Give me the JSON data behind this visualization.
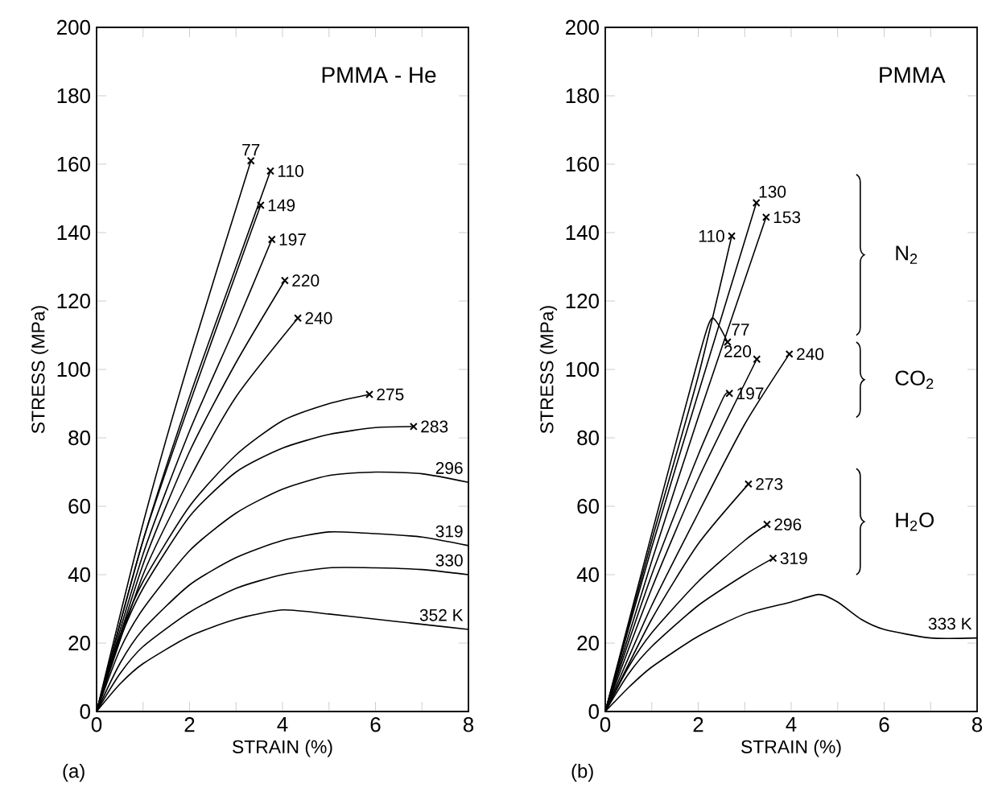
{
  "chart_data": [
    {
      "type": "line",
      "title": "PMMA - He",
      "xlabel": "STRAIN (%)",
      "ylabel": "STRESS (MPa)",
      "xlim": [
        0,
        8
      ],
      "ylim": [
        0,
        200
      ],
      "xticks": [
        0,
        {
          "value": 1,
          "label": null
        },
        2,
        {
          "value": 3,
          "label": null
        },
        4,
        {
          "value": 5,
          "label": null
        },
        6,
        {
          "value": 7,
          "label": null
        },
        8
      ],
      "yticks": [
        0,
        20,
        40,
        60,
        80,
        100,
        120,
        140,
        160,
        180,
        200
      ],
      "annotations": [
        "(a)"
      ],
      "series": [
        {
          "name": "77",
          "color": "#000000",
          "x": [
            0,
            1,
            2,
            3.32
          ],
          "values": [
            0,
            55,
            103,
            161
          ]
        },
        {
          "name": "110",
          "color": "#000000",
          "x": [
            0,
            1,
            2,
            3,
            3.74
          ],
          "values": [
            0,
            50,
            92,
            130,
            158
          ]
        },
        {
          "name": "149",
          "color": "#000000",
          "x": [
            0,
            1,
            2,
            3,
            3.53
          ],
          "values": [
            0,
            50,
            90,
            128,
            148
          ]
        },
        {
          "name": "197",
          "color": "#000000",
          "x": [
            0,
            1,
            2,
            3,
            3.77
          ],
          "values": [
            0,
            46,
            82,
            113,
            138
          ]
        },
        {
          "name": "220",
          "color": "#000000",
          "x": [
            0,
            1,
            2,
            3,
            4.05
          ],
          "values": [
            0,
            43,
            76,
            102,
            126
          ]
        },
        {
          "name": "240",
          "color": "#000000",
          "x": [
            0,
            1,
            2,
            3,
            4.33
          ],
          "values": [
            0,
            40,
            68,
            92,
            115
          ]
        },
        {
          "name": "275",
          "color": "#000000",
          "x": [
            0,
            0.5,
            1,
            2,
            3,
            4,
            5,
            5.87
          ],
          "values": [
            0,
            22,
            38,
            60,
            75,
            85,
            90,
            92.7
          ]
        },
        {
          "name": "283",
          "color": "#000000",
          "x": [
            0,
            0.5,
            1,
            2,
            3,
            4,
            5,
            6,
            6.82
          ],
          "values": [
            0,
            21,
            36,
            57,
            70,
            77,
            81,
            83,
            83.3
          ]
        },
        {
          "name": "296",
          "color": "#000000",
          "x": [
            0,
            0.5,
            1,
            2,
            3,
            4,
            5,
            6,
            7,
            8
          ],
          "values": [
            0,
            18,
            30,
            47,
            58,
            65,
            69,
            70,
            69.5,
            67
          ]
        },
        {
          "name": "319",
          "color": "#000000",
          "x": [
            0,
            0.5,
            1,
            2,
            3,
            4,
            5,
            6,
            7,
            8
          ],
          "values": [
            0,
            14,
            24,
            37,
            45,
            50,
            52.5,
            52,
            51,
            48.5
          ]
        },
        {
          "name": "330",
          "color": "#000000",
          "x": [
            0,
            0.5,
            1,
            2,
            3,
            4,
            5,
            6,
            7,
            8
          ],
          "values": [
            0,
            11,
            19,
            29,
            36,
            40,
            42,
            42,
            41.5,
            40
          ]
        },
        {
          "name": "352 K",
          "color": "#000000",
          "x": [
            0,
            0.5,
            1,
            2,
            3,
            4,
            5,
            6,
            7,
            8
          ],
          "values": [
            0,
            8,
            14,
            22,
            27,
            29.7,
            28.5,
            27,
            25.5,
            24
          ]
        },
        {
          "type": "scatter",
          "color": "#000000",
          "marker": "cross",
          "x": [
            3.32,
            3.74,
            3.53,
            3.77,
            4.05,
            4.33,
            5.87,
            6.82
          ],
          "values": [
            161,
            158,
            148,
            138,
            126,
            115,
            92.7,
            83.3
          ]
        }
      ]
    },
    {
      "type": "line",
      "title": "PMMA",
      "xlabel": "STRAIN (%)",
      "ylabel": "STRESS (MPa)",
      "xlim": [
        0,
        8
      ],
      "ylim": [
        0,
        200
      ],
      "xticks": [
        0,
        {
          "value": 1,
          "label": null
        },
        2,
        {
          "value": 3,
          "label": null
        },
        4,
        {
          "value": 5,
          "label": null
        },
        6,
        {
          "value": 7,
          "label": null
        },
        8
      ],
      "yticks": [
        0,
        20,
        40,
        60,
        80,
        100,
        120,
        140,
        160,
        180,
        200
      ],
      "annotations": [
        "(b)",
        "N$_{2}$",
        "CO$_{2}$",
        "H$_{2}$O"
      ],
      "series": [
        {
          "name": "110",
          "color": "#000000",
          "x": [
            0,
            1,
            2,
            2.72
          ],
          "values": [
            0,
            50,
            98,
            139
          ]
        },
        {
          "name": "130",
          "color": "#000000",
          "x": [
            0,
            1,
            2,
            3.25
          ],
          "values": [
            0,
            48,
            93,
            148.7
          ]
        },
        {
          "name": "153",
          "color": "#000000",
          "x": [
            0,
            1,
            2,
            3.46
          ],
          "values": [
            0,
            44,
            86,
            144.5
          ]
        },
        {
          "name": "77",
          "color": "#000000",
          "x": [
            0,
            1,
            2,
            2.3,
            2.63
          ],
          "values": [
            0,
            52,
            103,
            115,
            108
          ]
        },
        {
          "name": "220",
          "color": "#000000",
          "x": [
            0,
            1,
            2,
            3.26
          ],
          "values": [
            0,
            36,
            68,
            103
          ]
        },
        {
          "name": "240",
          "color": "#000000",
          "x": [
            0,
            1,
            2,
            3,
            3.96
          ],
          "values": [
            0,
            31,
            58,
            84,
            104.5
          ]
        },
        {
          "name": "197",
          "color": "#000000",
          "x": [
            0,
            1,
            2,
            2.55,
            2.67
          ],
          "values": [
            0,
            40,
            75,
            92,
            93
          ]
        },
        {
          "name": "273",
          "color": "#000000",
          "x": [
            0,
            1,
            2,
            3.08
          ],
          "values": [
            0,
            27,
            49,
            66.5
          ]
        },
        {
          "name": "296",
          "color": "#000000",
          "x": [
            0,
            0.5,
            1,
            2,
            3,
            3.48
          ],
          "values": [
            0,
            13,
            23,
            38,
            50,
            54.7
          ]
        },
        {
          "name": "319",
          "color": "#000000",
          "x": [
            0,
            0.5,
            1,
            2,
            3,
            3.61
          ],
          "values": [
            0,
            11,
            19,
            31,
            40,
            44.8
          ]
        },
        {
          "name": "333 K",
          "color": "#000000",
          "x": [
            0,
            0.5,
            1,
            2,
            3,
            4,
            4.6,
            5,
            5.5,
            6,
            7,
            8
          ],
          "values": [
            0,
            7,
            13,
            22,
            28.5,
            32,
            34.2,
            32,
            27,
            24,
            21.5,
            21.5
          ]
        },
        {
          "type": "scatter",
          "color": "#000000",
          "marker": "cross",
          "x": [
            2.72,
            3.25,
            3.46,
            2.63,
            3.26,
            3.96,
            2.67,
            3.08,
            3.48,
            3.61
          ],
          "values": [
            139,
            148.7,
            144.5,
            108,
            103,
            104.5,
            93,
            66.5,
            54.7,
            44.8
          ]
        }
      ]
    }
  ]
}
